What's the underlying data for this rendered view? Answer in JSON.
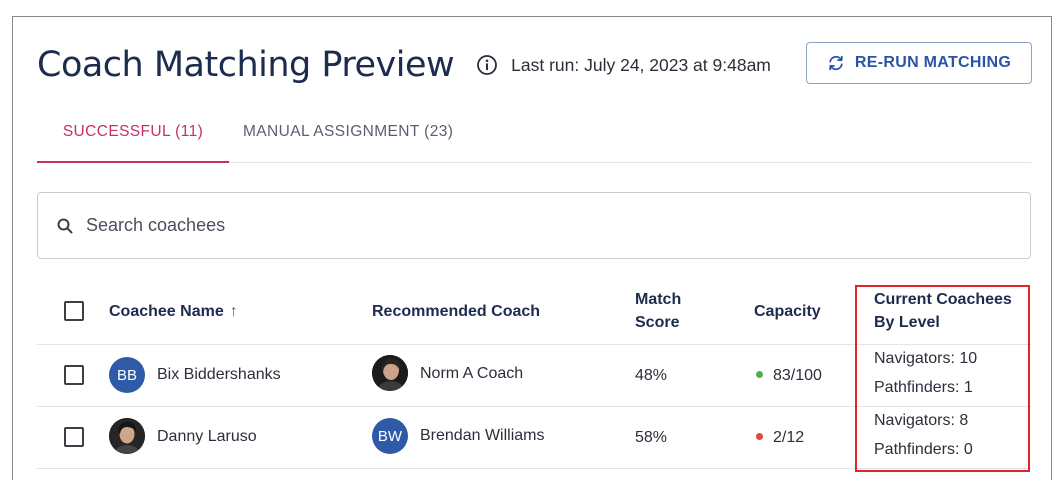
{
  "header": {
    "title": "Coach Matching Preview",
    "last_run": "Last run: July 24, 2023 at 9:48am",
    "rerun_label": "RE-RUN MATCHING"
  },
  "tabs": [
    {
      "label": "SUCCESSFUL (11)",
      "active": true
    },
    {
      "label": "MANUAL ASSIGNMENT (23)",
      "active": false
    }
  ],
  "search": {
    "placeholder": "Search coachees",
    "value": ""
  },
  "table": {
    "columns": {
      "coachee_name": "Coachee Name",
      "coachee_sort": "↑",
      "recommended_coach": "Recommended Coach",
      "match_score_line1": "Match",
      "match_score_line2": "Score",
      "capacity": "Capacity",
      "current_line1": "Current Coachees",
      "current_line2": "By Level"
    },
    "rows": [
      {
        "coachee": {
          "name": "Bix Biddershanks",
          "initials": "BB",
          "avatar": "initials"
        },
        "coach": {
          "name": "Norm A Coach",
          "avatar": "photo"
        },
        "match_score": "48%",
        "capacity": "83/100",
        "capacity_status": "green",
        "levels": [
          "Navigators: 10",
          "Pathfinders: 1"
        ]
      },
      {
        "coachee": {
          "name": "Danny Laruso",
          "avatar": "photo"
        },
        "coach": {
          "name": "Brendan Williams",
          "initials": "BW",
          "avatar": "initials"
        },
        "match_score": "58%",
        "capacity": "2/12",
        "capacity_status": "red",
        "levels": [
          "Navigators: 8",
          "Pathfinders: 0"
        ]
      }
    ]
  },
  "colors": {
    "accent": "#c2306e",
    "primary": "#2b54a6",
    "status_green": "#4caf50",
    "status_red": "#e0483e",
    "highlight": "#e0252b"
  },
  "icons": {
    "info": "info-circle-icon",
    "rerun": "refresh-icon",
    "search": "search-icon",
    "sort": "arrow-up-icon"
  }
}
